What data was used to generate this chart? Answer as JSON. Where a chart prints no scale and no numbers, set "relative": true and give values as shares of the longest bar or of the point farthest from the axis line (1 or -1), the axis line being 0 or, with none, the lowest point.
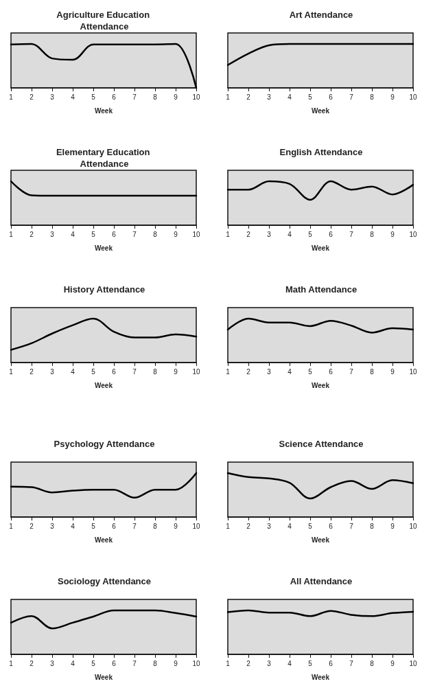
{
  "chart_data": [
    {
      "type": "line",
      "title": "Agriculture Education Attendance",
      "xlabel": "Week",
      "x": [
        1,
        2,
        3,
        4,
        5,
        6,
        7,
        8,
        9,
        10
      ],
      "relative": true,
      "xlim": [
        1,
        10
      ],
      "xticks": [
        1,
        2,
        3,
        4,
        5,
        6,
        7,
        8,
        9,
        10
      ],
      "tick_labels": "x",
      "grid": false,
      "marker": "none",
      "line_style": "solid",
      "color": "#000000",
      "values": [
        0.99,
        1,
        0.67,
        0.64,
        0.99,
        0.99,
        0.99,
        0.99,
        1,
        0
      ]
    },
    {
      "type": "line",
      "title": "Art Attendance",
      "xlabel": "Week",
      "x": [
        1,
        2,
        3,
        4,
        5,
        6,
        7,
        8,
        9,
        10
      ],
      "relative": true,
      "xlim": [
        1,
        10
      ],
      "xticks": [
        1,
        2,
        3,
        4,
        5,
        6,
        7,
        8,
        9,
        10
      ],
      "tick_labels": "x",
      "grid": false,
      "marker": "none",
      "line_style": "solid",
      "color": "#000000",
      "values": [
        0.52,
        0.78,
        0.97,
        1,
        1,
        1,
        1,
        1,
        1,
        1
      ]
    },
    {
      "type": "line",
      "title": "Elementary Education Attendance",
      "xlabel": "Week",
      "x": [
        1,
        2,
        3,
        4,
        5,
        6,
        7,
        8,
        9,
        10
      ],
      "relative": true,
      "xlim": [
        1,
        10
      ],
      "xticks": [
        1,
        2,
        3,
        4,
        5,
        6,
        7,
        8,
        9,
        10
      ],
      "tick_labels": "x",
      "grid": false,
      "marker": "none",
      "line_style": "solid",
      "color": "#000000",
      "values": [
        1,
        0.68,
        0.67,
        0.67,
        0.67,
        0.67,
        0.67,
        0.67,
        0.67,
        0.67
      ]
    },
    {
      "type": "line",
      "title": "English Attendance",
      "xlabel": "Week",
      "x": [
        1,
        2,
        3,
        4,
        5,
        6,
        7,
        8,
        9,
        10
      ],
      "relative": true,
      "xlim": [
        1,
        10
      ],
      "xticks": [
        1,
        2,
        3,
        4,
        5,
        6,
        7,
        8,
        9,
        10
      ],
      "tick_labels": "x",
      "grid": false,
      "marker": "none",
      "line_style": "solid",
      "color": "#000000",
      "values": [
        0.81,
        0.81,
        1,
        0.94,
        0.58,
        1,
        0.81,
        0.88,
        0.7,
        0.92
      ]
    },
    {
      "type": "line",
      "title": "History Attendance",
      "xlabel": "Week",
      "x": [
        1,
        2,
        3,
        4,
        5,
        6,
        7,
        8,
        9,
        10
      ],
      "relative": true,
      "xlim": [
        1,
        10
      ],
      "xticks": [
        1,
        2,
        3,
        4,
        5,
        6,
        7,
        8,
        9,
        10
      ],
      "tick_labels": "x",
      "grid": false,
      "marker": "none",
      "line_style": "solid",
      "color": "#000000",
      "values": [
        0.29,
        0.44,
        0.66,
        0.85,
        1,
        0.7,
        0.57,
        0.57,
        0.64,
        0.59
      ]
    },
    {
      "type": "line",
      "title": "Math Attendance",
      "xlabel": "Week",
      "x": [
        1,
        2,
        3,
        4,
        5,
        6,
        7,
        8,
        9,
        10
      ],
      "relative": true,
      "xlim": [
        1,
        10
      ],
      "xticks": [
        1,
        2,
        3,
        4,
        5,
        6,
        7,
        8,
        9,
        10
      ],
      "tick_labels": "x",
      "grid": false,
      "marker": "none",
      "line_style": "solid",
      "color": "#000000",
      "values": [
        0.75,
        1,
        0.91,
        0.91,
        0.83,
        0.95,
        0.84,
        0.68,
        0.78,
        0.75
      ]
    },
    {
      "type": "line",
      "title": "Psychology Attendance",
      "xlabel": "Week",
      "x": [
        1,
        2,
        3,
        4,
        5,
        6,
        7,
        8,
        9,
        10
      ],
      "relative": true,
      "xlim": [
        1,
        10
      ],
      "xticks": [
        1,
        2,
        3,
        4,
        5,
        6,
        7,
        8,
        9,
        10
      ],
      "tick_labels": "x",
      "grid": false,
      "marker": "none",
      "line_style": "solid",
      "color": "#000000",
      "values": [
        0.69,
        0.68,
        0.56,
        0.6,
        0.62,
        0.62,
        0.44,
        0.62,
        0.62,
        1
      ]
    },
    {
      "type": "line",
      "title": "Science Attendance",
      "xlabel": "Week",
      "x": [
        1,
        2,
        3,
        4,
        5,
        6,
        7,
        8,
        9,
        10
      ],
      "relative": true,
      "xlim": [
        1,
        10
      ],
      "xticks": [
        1,
        2,
        3,
        4,
        5,
        6,
        7,
        8,
        9,
        10
      ],
      "tick_labels": "x",
      "grid": false,
      "marker": "none",
      "line_style": "solid",
      "color": "#000000",
      "values": [
        1,
        0.91,
        0.88,
        0.78,
        0.42,
        0.68,
        0.82,
        0.64,
        0.84,
        0.77
      ]
    },
    {
      "type": "line",
      "title": "Sociology Attendance",
      "xlabel": "Week",
      "x": [
        1,
        2,
        3,
        4,
        5,
        6,
        7,
        8,
        9,
        10
      ],
      "relative": true,
      "xlim": [
        1,
        10
      ],
      "xticks": [
        1,
        2,
        3,
        4,
        5,
        6,
        7,
        8,
        9,
        10
      ],
      "tick_labels": "x",
      "grid": false,
      "marker": "none",
      "line_style": "solid",
      "color": "#000000",
      "values": [
        0.72,
        0.87,
        0.59,
        0.72,
        0.86,
        1,
        1,
        1,
        0.94,
        0.86
      ]
    },
    {
      "type": "line",
      "title": "All Attendance",
      "xlabel": "Week",
      "x": [
        1,
        2,
        3,
        4,
        5,
        6,
        7,
        8,
        9,
        10
      ],
      "relative": true,
      "xlim": [
        1,
        10
      ],
      "xticks": [
        1,
        2,
        3,
        4,
        5,
        6,
        7,
        8,
        9,
        10
      ],
      "tick_labels": "x",
      "grid": false,
      "marker": "none",
      "line_style": "solid",
      "color": "#000000",
      "values": [
        0.96,
        1,
        0.95,
        0.95,
        0.87,
        0.99,
        0.9,
        0.87,
        0.94,
        0.97
      ]
    }
  ]
}
